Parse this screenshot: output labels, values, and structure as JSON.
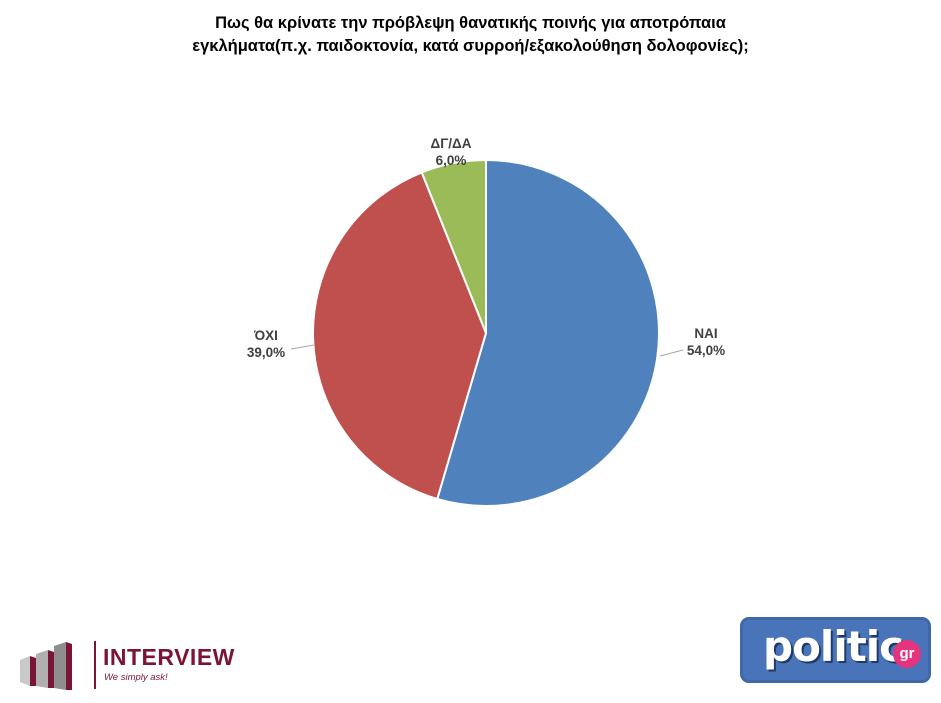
{
  "chart_data": {
    "type": "pie",
    "title_lines": [
      "Πως θα κρίνατε την πρόβλεψη θανατικής ποινής για αποτρόπαια",
      "εγκλήματα(π.χ. παιδοκτονία, κατά συρροή/εξακολούθηση δολοφονίες);"
    ],
    "slices": [
      {
        "label": "ΝΑΙ",
        "value": 54.0,
        "value_label": "54,0%",
        "color": "#4f81bd"
      },
      {
        "label": "ΌΧΙ",
        "value": 39.0,
        "value_label": "39,0%",
        "color": "#c0504d"
      },
      {
        "label": "ΔΓ/ΔΑ",
        "value": 6.0,
        "value_label": "6,0%",
        "color": "#9bbb59"
      }
    ],
    "legend": "none"
  },
  "logos": {
    "interview": {
      "name": "INTERVIEW",
      "tagline": "We simply ask!"
    },
    "politic": {
      "name": "politic",
      "suffix": "gr"
    }
  }
}
